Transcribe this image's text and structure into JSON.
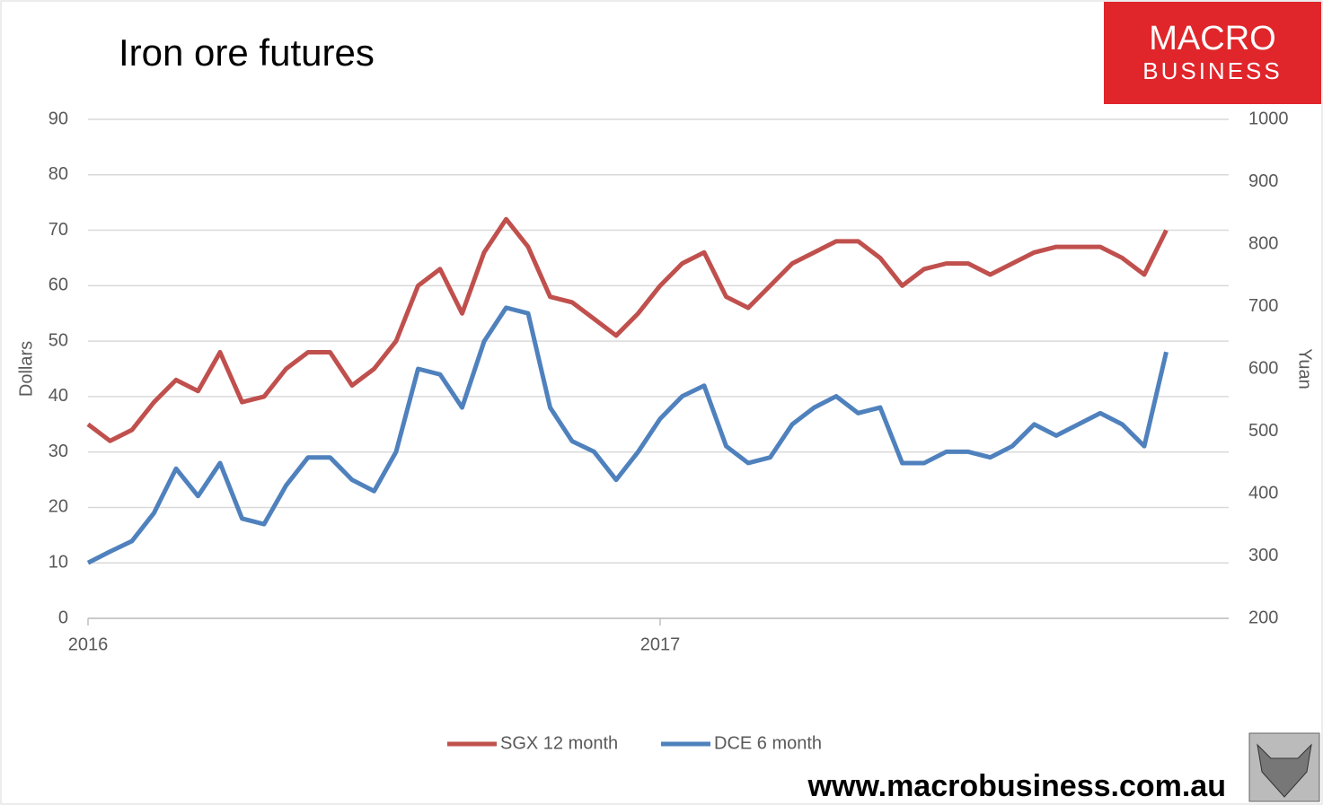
{
  "chart_data": {
    "type": "line",
    "title": "Iron ore futures",
    "logo": [
      "MACRO",
      "BUSINESS"
    ],
    "footer": "www.macrobusiness.com.au",
    "y_label": "Dollars",
    "y2_label": "Yuan",
    "categories": [
      "2016",
      null,
      null,
      null,
      null,
      null,
      null,
      null,
      null,
      null,
      null,
      null,
      null,
      null,
      null,
      null,
      null,
      null,
      null,
      null,
      null,
      null,
      null,
      null,
      null,
      null,
      "2017",
      null,
      null,
      null,
      null,
      null,
      null,
      null,
      null,
      null,
      null,
      null,
      null,
      null,
      null,
      null,
      null,
      null,
      null,
      null,
      null,
      null,
      null,
      null
    ],
    "series": [
      {
        "name": "SGX 12 month",
        "color": "#c0504d",
        "values": [
          35,
          32,
          34,
          39,
          43,
          41,
          48,
          39,
          40,
          45,
          48,
          48,
          42,
          45,
          50,
          60,
          63,
          55,
          66,
          72,
          67,
          58,
          57,
          54,
          51,
          55,
          60,
          64,
          66,
          58,
          56,
          60,
          64,
          66,
          68,
          68,
          65,
          60,
          63,
          64,
          64,
          62,
          64,
          66,
          67,
          67,
          67,
          65,
          62,
          70
        ]
      },
      {
        "name": "DCE 6 month",
        "color": "#4f81bd",
        "axis": "y2",
        "values": [
          289,
          307,
          324,
          369,
          440,
          396,
          449,
          360,
          351,
          413,
          458,
          458,
          422,
          404,
          467,
          600,
          591,
          538,
          644,
          698,
          689,
          538,
          484,
          467,
          422,
          467,
          520,
          556,
          573,
          476,
          449,
          458,
          511,
          538,
          556,
          529,
          538,
          449,
          449,
          467,
          467,
          458,
          476,
          511,
          493,
          511,
          529,
          511,
          476,
          627
        ]
      }
    ],
    "ylim": [
      0,
      90
    ],
    "yticks": [
      0,
      10,
      20,
      30,
      40,
      50,
      60,
      70,
      80,
      90
    ],
    "y2lim": [
      200,
      1000
    ],
    "y2ticks": [
      200,
      300,
      400,
      500,
      600,
      700,
      800,
      900,
      1000
    ],
    "grid": true,
    "legend": "bottom"
  }
}
